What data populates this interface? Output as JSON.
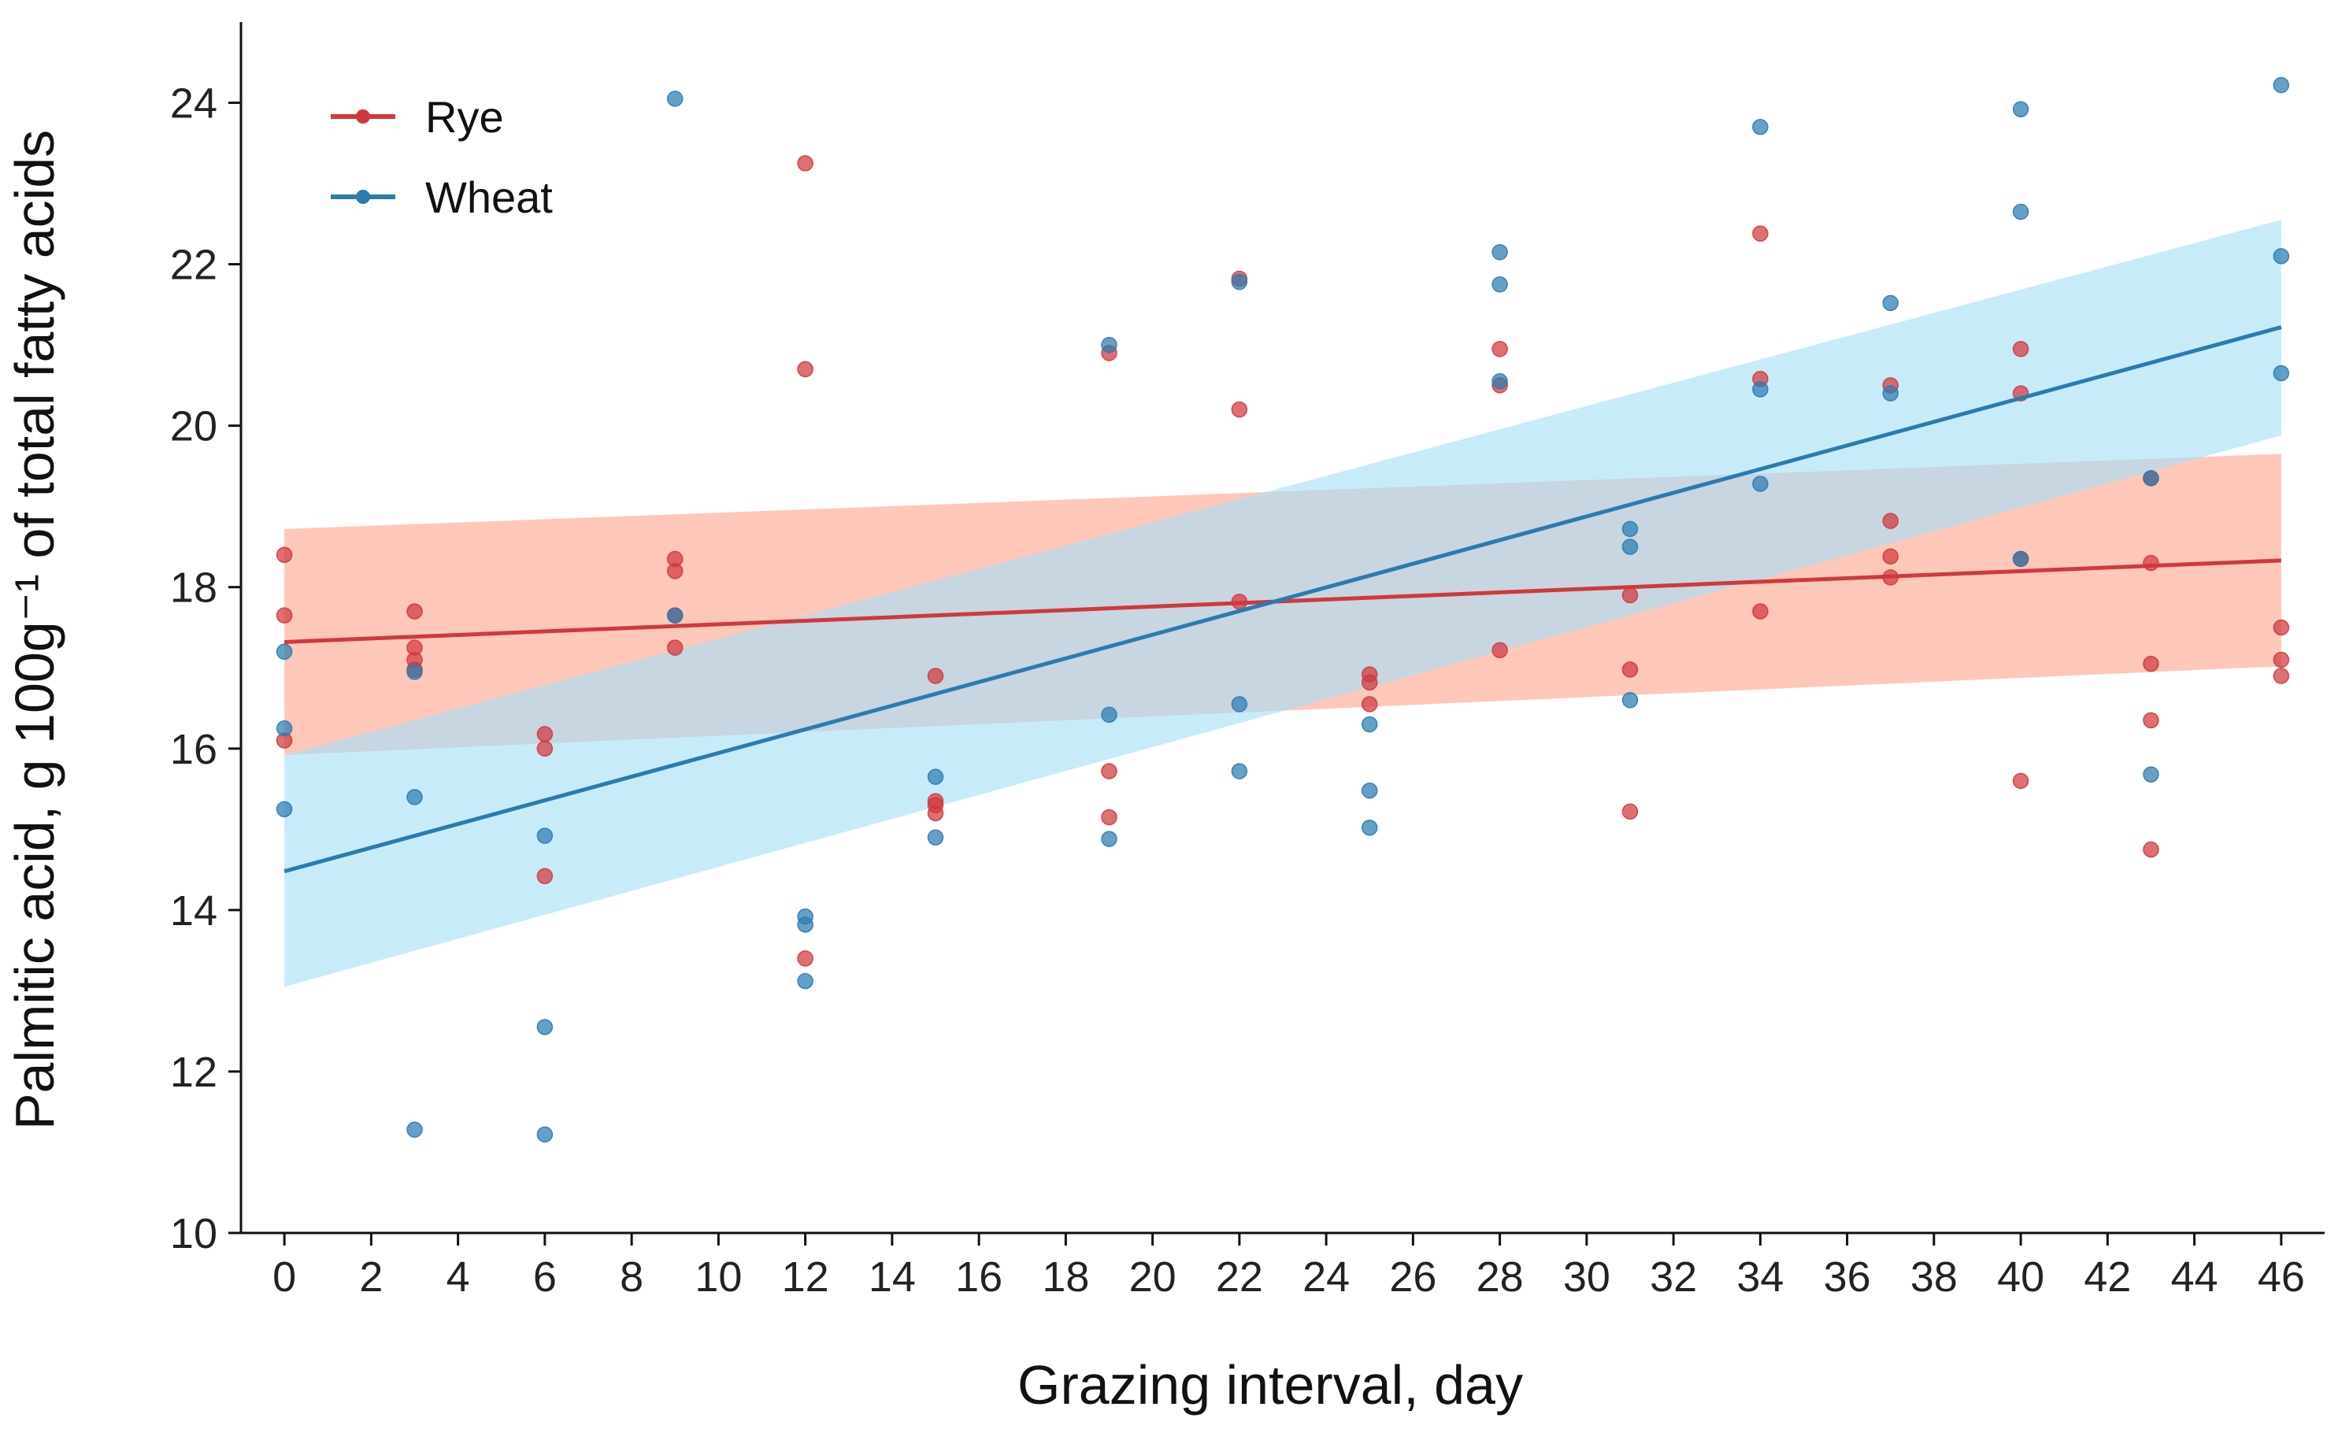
{
  "chart_data": {
    "type": "scatter",
    "title": "",
    "xlabel": "Grazing interval, day",
    "ylabel": "Palmitic acid, g 100g⁻¹ of total fatty acids",
    "xlim": [
      -1,
      47
    ],
    "ylim": [
      10,
      25
    ],
    "xticks": [
      0,
      2,
      4,
      6,
      8,
      10,
      12,
      14,
      16,
      18,
      20,
      22,
      24,
      26,
      28,
      30,
      32,
      34,
      36,
      38,
      40,
      42,
      44,
      46
    ],
    "yticks": [
      10,
      12,
      14,
      16,
      18,
      20,
      22,
      24
    ],
    "grid": false,
    "legend_position": "top-left",
    "series": [
      {
        "name": "Rye",
        "color": "#d1383d",
        "band_color": "#fba68f",
        "trend": {
          "x": [
            0,
            46
          ],
          "y": [
            17.32,
            18.33
          ],
          "ci_lower": [
            15.92,
            17.02
          ],
          "ci_upper": [
            18.72,
            19.65
          ]
        },
        "points": [
          [
            0,
            18.4
          ],
          [
            0,
            17.65
          ],
          [
            0,
            16.1
          ],
          [
            3,
            17.7
          ],
          [
            3,
            17.25
          ],
          [
            3,
            17.1
          ],
          [
            3,
            16.98
          ],
          [
            6,
            16.18
          ],
          [
            6,
            16.0
          ],
          [
            6,
            14.42
          ],
          [
            9,
            18.35
          ],
          [
            9,
            18.2
          ],
          [
            9,
            17.65
          ],
          [
            9,
            17.25
          ],
          [
            12,
            23.25
          ],
          [
            12,
            20.7
          ],
          [
            12,
            13.4
          ],
          [
            15,
            16.9
          ],
          [
            15,
            15.35
          ],
          [
            15,
            15.3
          ],
          [
            15,
            15.2
          ],
          [
            19,
            20.9
          ],
          [
            19,
            15.72
          ],
          [
            19,
            15.15
          ],
          [
            22,
            21.82
          ],
          [
            22,
            20.2
          ],
          [
            22,
            17.82
          ],
          [
            25,
            16.92
          ],
          [
            25,
            16.82
          ],
          [
            25,
            16.55
          ],
          [
            28,
            20.95
          ],
          [
            28,
            20.5
          ],
          [
            28,
            17.22
          ],
          [
            31,
            17.9
          ],
          [
            31,
            16.98
          ],
          [
            31,
            15.22
          ],
          [
            34,
            22.38
          ],
          [
            34,
            20.58
          ],
          [
            34,
            17.7
          ],
          [
            37,
            20.5
          ],
          [
            37,
            18.82
          ],
          [
            37,
            18.38
          ],
          [
            37,
            18.12
          ],
          [
            40,
            20.95
          ],
          [
            40,
            20.4
          ],
          [
            40,
            18.35
          ],
          [
            40,
            15.6
          ],
          [
            43,
            19.35
          ],
          [
            43,
            18.3
          ],
          [
            43,
            17.05
          ],
          [
            43,
            16.35
          ],
          [
            43,
            14.75
          ],
          [
            46,
            17.5
          ],
          [
            46,
            17.1
          ],
          [
            46,
            16.9
          ]
        ]
      },
      {
        "name": "Wheat",
        "color": "#2b7bb1",
        "band_color": "#a7dff7",
        "trend": {
          "x": [
            0,
            46
          ],
          "y": [
            14.48,
            21.22
          ],
          "ci_lower": [
            13.05,
            19.88
          ],
          "ci_upper": [
            15.92,
            22.55
          ]
        },
        "points": [
          [
            0,
            17.2
          ],
          [
            0,
            16.25
          ],
          [
            0,
            15.25
          ],
          [
            3,
            16.95
          ],
          [
            3,
            15.4
          ],
          [
            3,
            11.28
          ],
          [
            6,
            14.92
          ],
          [
            6,
            12.55
          ],
          [
            6,
            11.22
          ],
          [
            9,
            24.05
          ],
          [
            9,
            17.65
          ],
          [
            12,
            13.82
          ],
          [
            12,
            13.92
          ],
          [
            12,
            13.12
          ],
          [
            15,
            15.65
          ],
          [
            15,
            14.9
          ],
          [
            19,
            21.0
          ],
          [
            19,
            16.42
          ],
          [
            19,
            14.88
          ],
          [
            22,
            21.78
          ],
          [
            22,
            16.55
          ],
          [
            22,
            15.72
          ],
          [
            25,
            16.3
          ],
          [
            25,
            15.48
          ],
          [
            25,
            15.02
          ],
          [
            28,
            22.15
          ],
          [
            28,
            21.75
          ],
          [
            28,
            20.55
          ],
          [
            31,
            18.72
          ],
          [
            31,
            18.5
          ],
          [
            31,
            16.6
          ],
          [
            34,
            23.7
          ],
          [
            34,
            20.45
          ],
          [
            34,
            19.28
          ],
          [
            37,
            21.52
          ],
          [
            37,
            20.4
          ],
          [
            40,
            23.92
          ],
          [
            40,
            22.65
          ],
          [
            40,
            18.35
          ],
          [
            43,
            19.35
          ],
          [
            43,
            15.68
          ],
          [
            46,
            24.22
          ],
          [
            46,
            22.1
          ],
          [
            46,
            20.65
          ]
        ]
      }
    ]
  }
}
